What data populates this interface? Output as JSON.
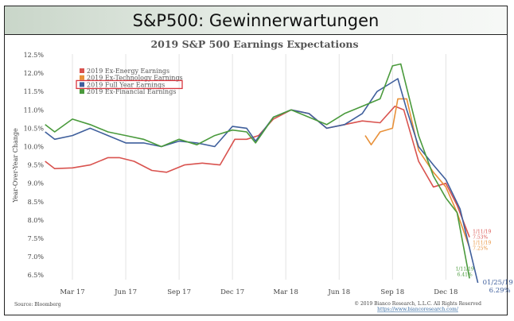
{
  "slide_title": "S&P500: Gewinnerwartungen",
  "chart_data": {
    "type": "line",
    "title": "2019 S&P 500 Earnings Expectations",
    "xlabel": "",
    "ylabel": "Year-Over-Year Change",
    "ylim": [
      6.5,
      12.5
    ],
    "yticks": [
      "6.5%",
      "7.0%",
      "7.5%",
      "8.0%",
      "8.5%",
      "9.0%",
      "9.5%",
      "10.0%",
      "10.5%",
      "11.0%",
      "11.5%",
      "12.0%",
      "12.5%"
    ],
    "ytick_values": [
      6.5,
      7.0,
      7.5,
      8.0,
      8.5,
      9.0,
      9.5,
      10.0,
      10.5,
      11.0,
      11.5,
      12.0,
      12.5
    ],
    "xticks": [
      "Mar 17",
      "Jun 17",
      "Sep 17",
      "Dec 17",
      "Mar 18",
      "Jun 18",
      "Sep 18",
      "Dec 18"
    ],
    "xtick_dates": [
      "2017-03-01",
      "2017-06-01",
      "2017-09-01",
      "2017-12-01",
      "2018-03-01",
      "2018-06-01",
      "2018-09-01",
      "2018-12-01"
    ],
    "grid": "vertical",
    "legend_position": "top-left",
    "series": [
      {
        "name": "2019 Ex-Energy Earnings",
        "color": "#d9534f",
        "x": [
          "2017-01-15",
          "2017-02-01",
          "2017-03-01",
          "2017-04-01",
          "2017-05-01",
          "2017-05-20",
          "2017-06-15",
          "2017-07-15",
          "2017-08-10",
          "2017-09-10",
          "2017-10-10",
          "2017-11-10",
          "2017-12-05",
          "2017-12-25",
          "2018-01-15",
          "2018-02-10",
          "2018-03-10",
          "2018-04-10",
          "2018-05-10",
          "2018-06-10",
          "2018-07-10",
          "2018-08-10",
          "2018-09-05",
          "2018-09-20",
          "2018-10-15",
          "2018-11-10",
          "2018-12-01",
          "2018-12-20",
          "2019-01-11"
        ],
        "y": [
          9.6,
          9.4,
          9.42,
          9.5,
          9.7,
          9.7,
          9.6,
          9.35,
          9.3,
          9.5,
          9.55,
          9.5,
          10.2,
          10.2,
          10.3,
          10.75,
          11.0,
          10.9,
          10.5,
          10.6,
          10.7,
          10.65,
          11.1,
          11.0,
          9.6,
          8.9,
          9.0,
          8.4,
          7.53
        ],
        "end_label": "1/11/19\n7.53%"
      },
      {
        "name": "2019 Ex-Technology Earnings",
        "color": "#e8913a",
        "x": [
          "2018-07-15",
          "2018-07-25",
          "2018-08-10",
          "2018-09-01",
          "2018-09-10",
          "2018-09-25",
          "2018-10-15",
          "2018-11-10",
          "2018-12-01",
          "2018-12-20",
          "2019-01-11"
        ],
        "y": [
          10.3,
          10.05,
          10.4,
          10.5,
          11.3,
          11.3,
          9.9,
          9.3,
          8.9,
          8.2,
          7.25
        ],
        "end_label": "1/11/19\n7.25%"
      },
      {
        "name": "2019 Full Year Earnings",
        "color": "#3f5f9c",
        "x": [
          "2017-01-15",
          "2017-02-01",
          "2017-03-01",
          "2017-04-01",
          "2017-05-01",
          "2017-06-01",
          "2017-07-01",
          "2017-08-01",
          "2017-09-01",
          "2017-10-01",
          "2017-11-01",
          "2017-12-01",
          "2017-12-25",
          "2018-01-10",
          "2018-02-10",
          "2018-03-10",
          "2018-04-10",
          "2018-05-10",
          "2018-06-10",
          "2018-07-10",
          "2018-08-05",
          "2018-08-25",
          "2018-09-10",
          "2018-09-25",
          "2018-10-15",
          "2018-11-10",
          "2018-12-01",
          "2018-12-25",
          "2019-01-25"
        ],
        "y": [
          10.4,
          10.2,
          10.3,
          10.5,
          10.3,
          10.1,
          10.1,
          10.0,
          10.15,
          10.1,
          10.0,
          10.55,
          10.5,
          10.15,
          10.8,
          11.0,
          10.9,
          10.5,
          10.6,
          10.9,
          11.5,
          11.7,
          11.85,
          11.0,
          10.0,
          9.5,
          9.1,
          8.3,
          6.29
        ],
        "end_label": "01/25/19\n6.29%"
      },
      {
        "name": "2019 Ex-Financial Earnings",
        "color": "#4a9a3c",
        "x": [
          "2017-01-15",
          "2017-02-01",
          "2017-03-01",
          "2017-04-01",
          "2017-05-01",
          "2017-06-01",
          "2017-07-01",
          "2017-08-01",
          "2017-09-01",
          "2017-10-01",
          "2017-11-01",
          "2017-12-01",
          "2017-12-25",
          "2018-01-10",
          "2018-02-10",
          "2018-03-10",
          "2018-04-10",
          "2018-05-10",
          "2018-06-10",
          "2018-07-10",
          "2018-08-10",
          "2018-09-01",
          "2018-09-15",
          "2018-10-15",
          "2018-11-10",
          "2018-12-01",
          "2018-12-20",
          "2019-01-11"
        ],
        "y": [
          10.6,
          10.4,
          10.75,
          10.6,
          10.4,
          10.3,
          10.2,
          10.0,
          10.2,
          10.05,
          10.3,
          10.45,
          10.4,
          10.1,
          10.8,
          11.0,
          10.8,
          10.6,
          10.9,
          11.1,
          11.3,
          12.2,
          12.25,
          10.3,
          9.2,
          8.6,
          8.2,
          6.41
        ],
        "end_label": "1/11/19\n6.41%"
      }
    ],
    "highlighted_legend_entry": "2019 Full Year Earnings"
  },
  "source": "Source: Bloomberg",
  "copyright": "© 2019 Bianco Research, L.L.C. All Rights Reserved",
  "url": "https://www.biancoresearch.com/"
}
